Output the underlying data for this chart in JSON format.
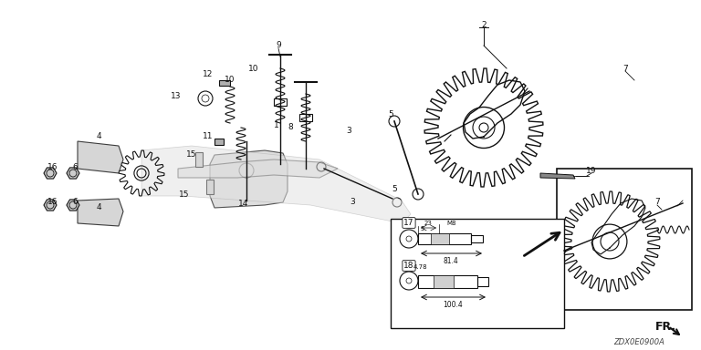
{
  "bg_color": "#ffffff",
  "fig_width": 7.68,
  "fig_height": 3.84,
  "dpi": 100,
  "watermark": "ZDX0E0900A",
  "fr_label": "FR."
}
